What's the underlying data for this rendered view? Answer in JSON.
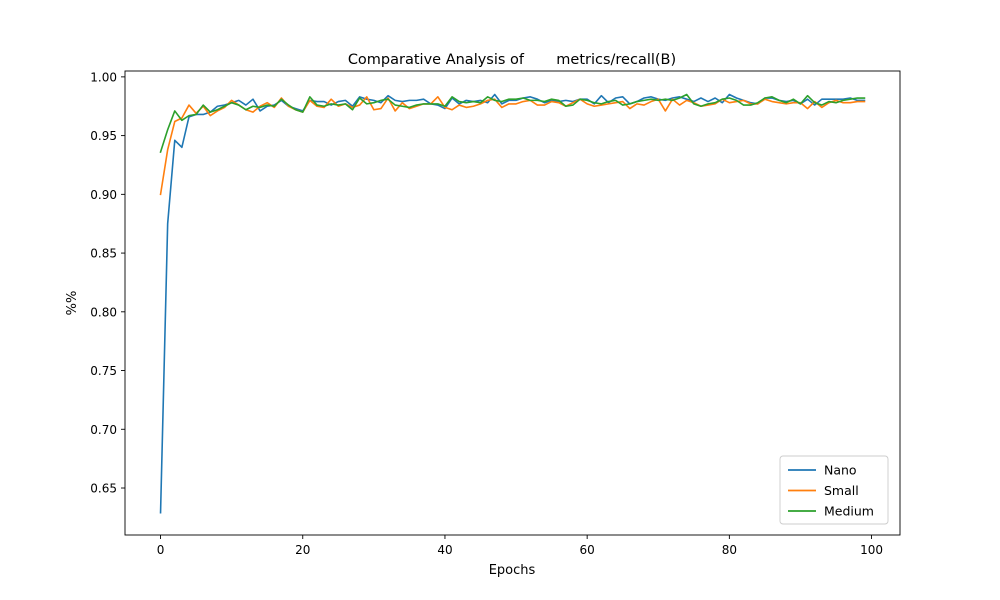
{
  "chart_data": {
    "type": "line",
    "title": "Comparative Analysis of       metrics/recall(B)",
    "xlabel": "Epochs",
    "ylabel": "%%",
    "xlim": [
      -5,
      104
    ],
    "ylim": [
      0.61,
      1.005
    ],
    "xticks": [
      0,
      20,
      40,
      60,
      80,
      100
    ],
    "yticks": [
      0.65,
      0.7,
      0.75,
      0.8,
      0.85,
      0.9,
      0.95,
      1.0
    ],
    "ytick_labels": [
      "0.65",
      "0.70",
      "0.75",
      "0.80",
      "0.85",
      "0.90",
      "0.95",
      "1.00"
    ],
    "grid": false,
    "legend": "lower-right",
    "series": [
      {
        "name": "Nano",
        "color": "#1f77b4",
        "values": [
          0.629,
          0.875,
          0.946,
          0.94,
          0.966,
          0.968,
          0.968,
          0.97,
          0.975,
          0.976,
          0.978,
          0.98,
          0.976,
          0.981,
          0.971,
          0.975,
          0.976,
          0.98,
          0.975,
          0.973,
          0.971,
          0.98,
          0.979,
          0.979,
          0.976,
          0.979,
          0.98,
          0.975,
          0.983,
          0.981,
          0.98,
          0.978,
          0.984,
          0.98,
          0.979,
          0.98,
          0.98,
          0.981,
          0.977,
          0.976,
          0.973,
          0.982,
          0.977,
          0.98,
          0.979,
          0.98,
          0.978,
          0.985,
          0.977,
          0.98,
          0.98,
          0.982,
          0.983,
          0.981,
          0.978,
          0.98,
          0.979,
          0.98,
          0.979,
          0.981,
          0.981,
          0.977,
          0.984,
          0.978,
          0.982,
          0.983,
          0.977,
          0.979,
          0.982,
          0.983,
          0.981,
          0.98,
          0.982,
          0.983,
          0.981,
          0.979,
          0.982,
          0.979,
          0.982,
          0.978,
          0.985,
          0.982,
          0.98,
          0.978,
          0.977,
          0.982,
          0.982,
          0.98,
          0.979,
          0.98,
          0.977,
          0.981,
          0.976,
          0.981,
          0.981,
          0.981,
          0.981,
          0.982,
          0.98,
          0.98
        ]
      },
      {
        "name": "Small",
        "color": "#ff7f0e",
        "values": [
          0.9,
          0.938,
          0.962,
          0.965,
          0.976,
          0.969,
          0.975,
          0.967,
          0.971,
          0.974,
          0.98,
          0.976,
          0.972,
          0.97,
          0.975,
          0.978,
          0.974,
          0.982,
          0.975,
          0.972,
          0.97,
          0.98,
          0.975,
          0.974,
          0.981,
          0.975,
          0.977,
          0.974,
          0.976,
          0.983,
          0.972,
          0.973,
          0.982,
          0.971,
          0.978,
          0.973,
          0.975,
          0.977,
          0.977,
          0.983,
          0.974,
          0.972,
          0.976,
          0.974,
          0.975,
          0.977,
          0.98,
          0.981,
          0.974,
          0.977,
          0.977,
          0.979,
          0.98,
          0.976,
          0.976,
          0.979,
          0.978,
          0.975,
          0.978,
          0.981,
          0.977,
          0.975,
          0.976,
          0.977,
          0.978,
          0.979,
          0.973,
          0.977,
          0.976,
          0.979,
          0.981,
          0.971,
          0.981,
          0.976,
          0.98,
          0.978,
          0.975,
          0.976,
          0.977,
          0.981,
          0.978,
          0.979,
          0.98,
          0.977,
          0.977,
          0.981,
          0.979,
          0.978,
          0.977,
          0.978,
          0.978,
          0.973,
          0.979,
          0.974,
          0.978,
          0.98,
          0.978,
          0.978,
          0.979,
          0.979
        ]
      },
      {
        "name": "Medium",
        "color": "#2ca02c",
        "values": [
          0.936,
          0.955,
          0.971,
          0.963,
          0.967,
          0.968,
          0.976,
          0.97,
          0.972,
          0.975,
          0.978,
          0.976,
          0.972,
          0.975,
          0.974,
          0.976,
          0.975,
          0.981,
          0.976,
          0.972,
          0.97,
          0.983,
          0.976,
          0.975,
          0.977,
          0.976,
          0.977,
          0.972,
          0.982,
          0.977,
          0.978,
          0.98,
          0.981,
          0.976,
          0.975,
          0.974,
          0.976,
          0.977,
          0.977,
          0.977,
          0.975,
          0.983,
          0.979,
          0.978,
          0.979,
          0.978,
          0.983,
          0.98,
          0.979,
          0.981,
          0.981,
          0.982,
          0.98,
          0.98,
          0.979,
          0.981,
          0.98,
          0.975,
          0.976,
          0.981,
          0.98,
          0.978,
          0.977,
          0.979,
          0.98,
          0.976,
          0.977,
          0.979,
          0.98,
          0.981,
          0.98,
          0.981,
          0.98,
          0.982,
          0.985,
          0.977,
          0.975,
          0.977,
          0.978,
          0.981,
          0.982,
          0.98,
          0.976,
          0.976,
          0.978,
          0.982,
          0.983,
          0.98,
          0.978,
          0.981,
          0.977,
          0.984,
          0.978,
          0.976,
          0.979,
          0.978,
          0.98,
          0.981,
          0.982,
          0.982
        ]
      }
    ]
  }
}
